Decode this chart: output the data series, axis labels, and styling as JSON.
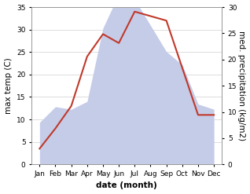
{
  "months": [
    "Jan",
    "Feb",
    "Mar",
    "Apr",
    "May",
    "Jun",
    "Jul",
    "Aug",
    "Sep",
    "Oct",
    "Nov",
    "Dec"
  ],
  "temperature": [
    3.5,
    8.0,
    13.0,
    24.0,
    29.0,
    27.0,
    34.0,
    33.0,
    32.0,
    21.5,
    11.0,
    11.0
  ],
  "precipitation": [
    8.0,
    11.0,
    10.5,
    12.0,
    26.0,
    32.5,
    31.5,
    26.5,
    21.5,
    19.0,
    11.5,
    10.5
  ],
  "temp_color": "#c0392b",
  "precip_fill_color": "#c5cce8",
  "precip_fill_alpha": 1.0,
  "background_color": "#ffffff",
  "ylim_temp": [
    0,
    35
  ],
  "ylim_precip": [
    0,
    30
  ],
  "yticks_temp": [
    0,
    5,
    10,
    15,
    20,
    25,
    30,
    35
  ],
  "yticks_precip": [
    0,
    5,
    10,
    15,
    20,
    25,
    30
  ],
  "xlabel": "date (month)",
  "ylabel_left": "max temp (C)",
  "ylabel_right": "med. precipitation (kg/m2)",
  "label_fontsize": 7.5,
  "tick_fontsize": 6.5,
  "xlabel_fontweight": "bold",
  "grid_color": "#d0d0d0",
  "line_width": 1.5,
  "temp_scale_max": 35,
  "precip_scale_max": 30
}
